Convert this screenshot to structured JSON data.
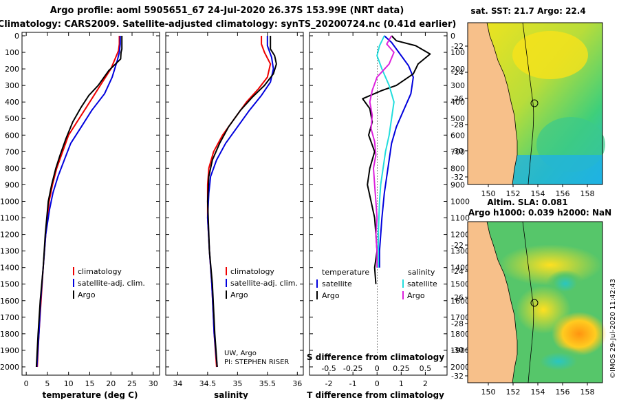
{
  "header": {
    "title_line1": "Argo profile: aoml 5905651_67 24-Jul-2020 26.37S 153.99E (NRT data)",
    "title_line2": "Climatology: CARS2009. Satellite-adjusted climatology: synTS_20200724.nc (0.41d earlier)"
  },
  "colors": {
    "climatology": "#ee0000",
    "satellite": "#0000dd",
    "argo": "#000000",
    "sat_salinity": "#22dddd",
    "argo_salinity": "#dd22dd",
    "land": "#f7c08a"
  },
  "depth_axis": {
    "ticks": [
      "0",
      "100",
      "200",
      "300",
      "400",
      "500",
      "600",
      "700",
      "800",
      "900",
      "1000",
      "1100",
      "1200",
      "1300",
      "1400",
      "1500",
      "1600",
      "1700",
      "1800",
      "1900",
      "2000"
    ],
    "range": [
      0,
      2050
    ]
  },
  "chart_data": [
    {
      "type": "line",
      "name": "temperature",
      "xlabel": "temperature (deg C)",
      "xlim": [
        -1,
        31.5
      ],
      "xticks": [
        "0",
        "5",
        "10",
        "15",
        "20",
        "25",
        "30"
      ],
      "xtick_values": [
        0,
        5,
        10,
        15,
        20,
        25,
        30
      ],
      "legend": [
        "climatology",
        "satellite-adj. clim.",
        "Argo"
      ],
      "series": [
        {
          "name": "climatology",
          "color": "climatology",
          "points": [
            [
              22.0,
              0
            ],
            [
              22.0,
              50
            ],
            [
              21.8,
              90
            ],
            [
              20.0,
              200
            ],
            [
              17.5,
              300
            ],
            [
              15.0,
              400
            ],
            [
              12.5,
              500
            ],
            [
              10.0,
              600
            ],
            [
              8.6,
              700
            ],
            [
              7.2,
              800
            ],
            [
              6.2,
              900
            ],
            [
              5.4,
              1000
            ],
            [
              4.6,
              1200
            ],
            [
              4.0,
              1400
            ],
            [
              3.5,
              1600
            ],
            [
              3.0,
              1800
            ],
            [
              2.6,
              2000
            ]
          ]
        },
        {
          "name": "satellite-adj. clim.",
          "color": "satellite",
          "points": [
            [
              22.2,
              0
            ],
            [
              22.2,
              50
            ],
            [
              22.0,
              100
            ],
            [
              21.5,
              150
            ],
            [
              20.3,
              250
            ],
            [
              18.5,
              350
            ],
            [
              15.5,
              450
            ],
            [
              13.0,
              550
            ],
            [
              10.5,
              650
            ],
            [
              9.0,
              750
            ],
            [
              7.5,
              850
            ],
            [
              6.3,
              950
            ],
            [
              5.5,
              1050
            ],
            [
              4.6,
              1200
            ],
            [
              4.0,
              1400
            ],
            [
              3.4,
              1600
            ],
            [
              3.0,
              1800
            ],
            [
              2.5,
              2000
            ]
          ]
        },
        {
          "name": "Argo",
          "color": "argo",
          "points": [
            [
              22.6,
              0
            ],
            [
              22.6,
              80
            ],
            [
              22.4,
              100
            ],
            [
              22.3,
              140
            ],
            [
              19.5,
              210
            ],
            [
              17.0,
              300
            ],
            [
              14.8,
              360
            ],
            [
              13.0,
              430
            ],
            [
              11.0,
              520
            ],
            [
              9.4,
              620
            ],
            [
              8.0,
              720
            ],
            [
              7.0,
              800
            ],
            [
              6.0,
              900
            ],
            [
              5.2,
              1000
            ],
            [
              4.5,
              1200
            ],
            [
              4.0,
              1400
            ],
            [
              3.3,
              1600
            ],
            [
              2.8,
              1800
            ],
            [
              2.4,
              2000
            ]
          ]
        }
      ]
    },
    {
      "type": "line",
      "name": "salinity",
      "xlabel": "salinity",
      "xlim": [
        33.8,
        36.1
      ],
      "xticks": [
        "34",
        "34.5",
        "35",
        "35.5",
        "36"
      ],
      "xtick_values": [
        34,
        34.5,
        35,
        35.5,
        36
      ],
      "legend": [
        "climatology",
        "satellite-adj. clim.",
        "Argo"
      ],
      "annotation": [
        "UW, Argo",
        "PI: STEPHEN RISER"
      ],
      "series": [
        {
          "name": "climatology",
          "color": "climatology",
          "points": [
            [
              35.4,
              0
            ],
            [
              35.4,
              50
            ],
            [
              35.45,
              100
            ],
            [
              35.55,
              170
            ],
            [
              35.5,
              250
            ],
            [
              35.35,
              320
            ],
            [
              35.15,
              400
            ],
            [
              34.95,
              500
            ],
            [
              34.75,
              600
            ],
            [
              34.6,
              700
            ],
            [
              34.52,
              800
            ],
            [
              34.5,
              900
            ],
            [
              34.5,
              1100
            ],
            [
              34.53,
              1300
            ],
            [
              34.57,
              1500
            ],
            [
              34.61,
              1800
            ],
            [
              34.65,
              2000
            ]
          ]
        },
        {
          "name": "satellite-adj. clim.",
          "color": "satellite",
          "points": [
            [
              35.5,
              0
            ],
            [
              35.5,
              60
            ],
            [
              35.57,
              130
            ],
            [
              35.6,
              200
            ],
            [
              35.55,
              280
            ],
            [
              35.4,
              360
            ],
            [
              35.2,
              450
            ],
            [
              35.0,
              550
            ],
            [
              34.8,
              650
            ],
            [
              34.65,
              750
            ],
            [
              34.55,
              850
            ],
            [
              34.52,
              950
            ],
            [
              34.5,
              1100
            ],
            [
              34.53,
              1300
            ],
            [
              34.57,
              1500
            ],
            [
              34.61,
              1800
            ],
            [
              34.66,
              2000
            ]
          ]
        },
        {
          "name": "Argo",
          "color": "argo",
          "points": [
            [
              35.55,
              0
            ],
            [
              35.55,
              80
            ],
            [
              35.62,
              120
            ],
            [
              35.65,
              170
            ],
            [
              35.6,
              230
            ],
            [
              35.45,
              300
            ],
            [
              35.25,
              370
            ],
            [
              35.05,
              450
            ],
            [
              34.85,
              550
            ],
            [
              34.7,
              650
            ],
            [
              34.58,
              750
            ],
            [
              34.52,
              850
            ],
            [
              34.5,
              1000
            ],
            [
              34.53,
              1300
            ],
            [
              34.58,
              1500
            ],
            [
              34.62,
              1800
            ],
            [
              34.66,
              2000
            ]
          ]
        }
      ]
    },
    {
      "type": "line",
      "name": "difference",
      "xlabel": "T difference from climatology",
      "xlabel2": "S difference from climatology",
      "xlim": [
        -2.8,
        2.9
      ],
      "xticks": [
        "-2",
        "-1",
        "0",
        "1",
        "2"
      ],
      "xtick_values": [
        -2,
        -1,
        0,
        1,
        2
      ],
      "sticks": [
        "-0.5",
        "-0.25",
        "0",
        "0.25",
        "0.5"
      ],
      "stick_values": [
        -2,
        -1,
        0,
        1,
        2
      ],
      "legend_temperature_title": "temperature",
      "legend_salinity_title": "salinity",
      "legend_temperature": [
        "satellite",
        "Argo"
      ],
      "legend_salinity": [
        "satellite",
        "Argo"
      ],
      "series": [
        {
          "name": "T satellite",
          "color": "satellite",
          "points": [
            [
              0.3,
              0
            ],
            [
              0.6,
              40
            ],
            [
              0.9,
              100
            ],
            [
              1.3,
              180
            ],
            [
              1.5,
              250
            ],
            [
              1.4,
              350
            ],
            [
              1.1,
              450
            ],
            [
              0.8,
              550
            ],
            [
              0.6,
              650
            ],
            [
              0.5,
              750
            ],
            [
              0.4,
              850
            ],
            [
              0.3,
              950
            ],
            [
              0.2,
              1100
            ],
            [
              0.1,
              1300
            ],
            [
              0.1,
              1400
            ]
          ]
        },
        {
          "name": "T Argo",
          "color": "argo",
          "points": [
            [
              0.6,
              0
            ],
            [
              0.8,
              30
            ],
            [
              1.6,
              60
            ],
            [
              2.2,
              110
            ],
            [
              1.7,
              170
            ],
            [
              1.5,
              230
            ],
            [
              0.8,
              300
            ],
            [
              0.2,
              330
            ],
            [
              -0.6,
              380
            ],
            [
              -0.3,
              440
            ],
            [
              -0.2,
              520
            ],
            [
              -0.35,
              600
            ],
            [
              -0.1,
              700
            ],
            [
              -0.3,
              800
            ],
            [
              -0.4,
              900
            ],
            [
              -0.25,
              1000
            ],
            [
              -0.1,
              1100
            ],
            [
              -0.05,
              1200
            ],
            [
              0.0,
              1300
            ],
            [
              -0.1,
              1400
            ],
            [
              -0.05,
              1500
            ]
          ]
        },
        {
          "name": "S satellite",
          "color": "sat_salinity",
          "points": [
            [
              0.3,
              0
            ],
            [
              0.1,
              60
            ],
            [
              0.0,
              120
            ],
            [
              0.2,
              200
            ],
            [
              0.5,
              300
            ],
            [
              0.7,
              400
            ],
            [
              0.6,
              500
            ],
            [
              0.5,
              600
            ],
            [
              0.35,
              700
            ],
            [
              0.25,
              800
            ],
            [
              0.15,
              900
            ],
            [
              0.1,
              1000
            ],
            [
              0.05,
              1200
            ],
            [
              0.05,
              1400
            ]
          ]
        },
        {
          "name": "S Argo",
          "color": "argo_salinity",
          "points": [
            [
              0.6,
              0
            ],
            [
              0.4,
              50
            ],
            [
              0.7,
              100
            ],
            [
              0.5,
              170
            ],
            [
              0.0,
              250
            ],
            [
              -0.2,
              330
            ],
            [
              -0.3,
              400
            ],
            [
              -0.2,
              480
            ],
            [
              -0.25,
              560
            ],
            [
              -0.1,
              640
            ],
            [
              -0.05,
              720
            ],
            [
              -0.15,
              800
            ],
            [
              -0.1,
              900
            ],
            [
              -0.05,
              1000
            ],
            [
              0.0,
              1100
            ],
            [
              -0.05,
              1200
            ],
            [
              0.0,
              1300
            ],
            [
              0.0,
              1400
            ]
          ]
        }
      ]
    }
  ],
  "maps": {
    "sst": {
      "title": "sat. SST: 21.7 Argo: 22.4",
      "lon_ticks": [
        "150",
        "152",
        "154",
        "156",
        "158"
      ],
      "lat_ticks": [
        "-22",
        "-24",
        "-26",
        "-28",
        "-30",
        "-32"
      ]
    },
    "sla": {
      "title_line1": "Altim. SLA: 0.081",
      "title_line2": "Argo h1000: 0.039 h2000: NaN",
      "lon_ticks": [
        "150",
        "152",
        "154",
        "156",
        "158"
      ],
      "lat_ticks": [
        "-22",
        "-24",
        "-26",
        "-28",
        "-30",
        "-32"
      ]
    }
  },
  "credit": "©IMOS 29-Jul-2020 11:42:43"
}
